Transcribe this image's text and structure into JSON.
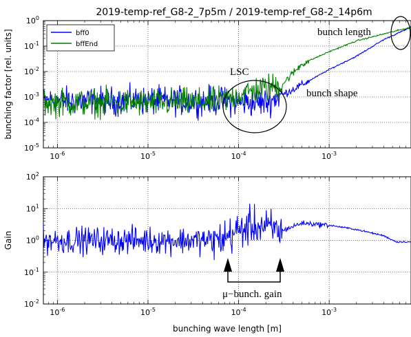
{
  "chart_data": [
    {
      "type": "line",
      "title": "2019-temp-ref_G8-2_7p5m / 2019-temp-ref_G8-2_14p6m",
      "xlabel": "",
      "ylabel": "bunching factor [rel. units]",
      "xscale": "log",
      "yscale": "log",
      "xlim": [
        7e-07,
        0.008
      ],
      "ylim": [
        1e-05,
        1
      ],
      "grid": true,
      "legend_placement": "top-left",
      "x_ticks": [
        "10-6",
        "10-5",
        "10-4",
        "10-3"
      ],
      "y_ticks": [
        "10-5",
        "10-4",
        "10-3",
        "10-2",
        "10-1",
        "100"
      ],
      "series": [
        {
          "name": "bff0",
          "color": "#0000ff",
          "x": [
            7e-07,
            1e-06,
            3e-06,
            1e-05,
            3e-05,
            6e-05,
            0.0001,
            0.0002,
            0.0003,
            0.0005,
            0.001,
            0.002,
            0.004,
            0.008
          ],
          "y": [
            0.0007,
            0.0007,
            0.0007,
            0.0007,
            0.0007,
            0.0007,
            0.0006,
            0.0006,
            0.0012,
            0.003,
            0.012,
            0.04,
            0.18,
            0.55
          ]
        },
        {
          "name": "bffEnd",
          "color": "#007f00",
          "x": [
            7e-07,
            1e-06,
            3e-06,
            1e-05,
            3e-05,
            6e-05,
            0.0001,
            0.00015,
            0.0002,
            0.0003,
            0.0005,
            0.001,
            0.002,
            0.004,
            0.008
          ],
          "y": [
            0.0006,
            0.0006,
            0.0006,
            0.0006,
            0.0006,
            0.0007,
            0.0012,
            0.0018,
            0.0022,
            0.003,
            0.02,
            0.06,
            0.16,
            0.3,
            0.55
          ]
        }
      ],
      "annotations": [
        "bunch length",
        "LSC",
        "bunch shape"
      ]
    },
    {
      "type": "line",
      "title": "",
      "xlabel": "bunching wave length [m]",
      "ylabel": "Gain",
      "xscale": "log",
      "yscale": "log",
      "xlim": [
        7e-07,
        0.008
      ],
      "ylim": [
        0.01,
        100
      ],
      "grid": true,
      "x_ticks": [
        "10-6",
        "10-5",
        "10-4",
        "10-3"
      ],
      "y_ticks": [
        "10-2",
        "10-1",
        "100",
        "101",
        "102"
      ],
      "series": [
        {
          "name": "",
          "color": "#0000ff",
          "x": [
            7e-07,
            1e-06,
            3e-06,
            1e-05,
            3e-05,
            6e-05,
            0.0001,
            0.00015,
            0.0002,
            0.0003,
            0.0005,
            0.001,
            0.002,
            0.004,
            0.0055,
            0.008
          ],
          "y": [
            1.0,
            1.0,
            1.0,
            1.0,
            1.0,
            1.0,
            2.0,
            3.0,
            2.5,
            2.0,
            3.5,
            3.0,
            2.2,
            1.4,
            0.9,
            0.9
          ]
        }
      ],
      "annotations": [
        "μ−bunch. gain"
      ]
    }
  ]
}
